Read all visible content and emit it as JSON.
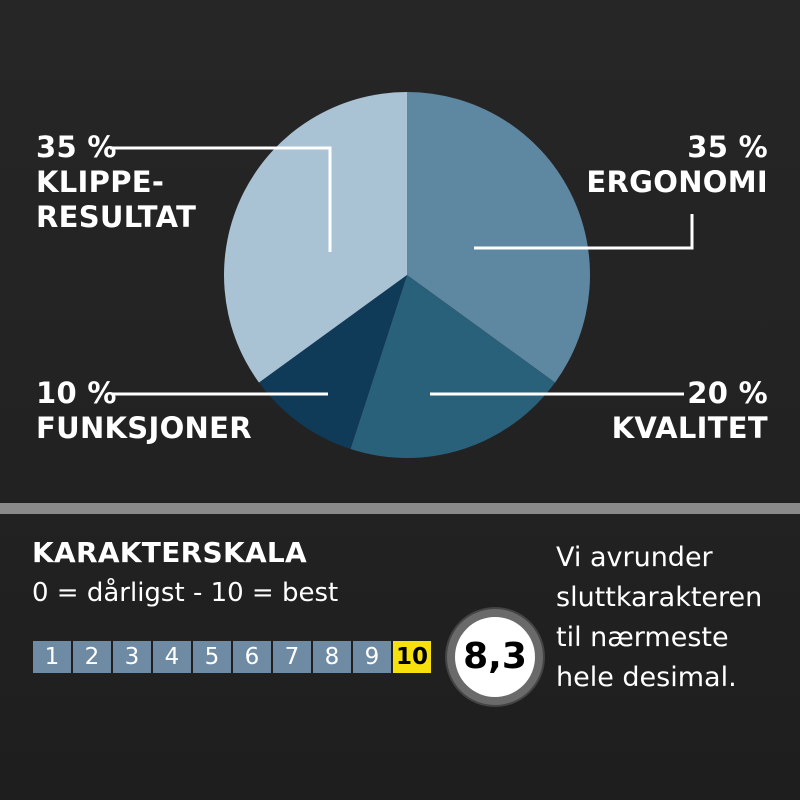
{
  "chart_data": {
    "type": "pie",
    "slices": [
      {
        "label": "ERGONOMI",
        "value": 35,
        "value_label": "35 %",
        "color": "#5e88a1"
      },
      {
        "label": "KVALITET",
        "value": 20,
        "value_label": "20 %",
        "color": "#29607a"
      },
      {
        "label": "FUNKSJONER",
        "value": 10,
        "value_label": "10 %",
        "color": "#0f3a58"
      },
      {
        "label": "KLIPPE-RESULTAT",
        "value": 35,
        "value_label": "35 %",
        "color": "#a9c2d4"
      }
    ]
  },
  "labels": {
    "klippe": {
      "pct": "35 %",
      "line1": "KLIPPE-",
      "line2": "RESULTAT"
    },
    "ergonomi": {
      "pct": "35 %",
      "line1": "ERGONOMI"
    },
    "funksjoner": {
      "pct": "10 %",
      "line1": "FUNKSJONER"
    },
    "kvalitet": {
      "pct": "20 %",
      "line1": "KVALITET"
    }
  },
  "scale": {
    "title": "KARAKTERSKALA",
    "subtitle": "0 = dårligst - 10 = best",
    "numbers": [
      "1",
      "2",
      "3",
      "4",
      "5",
      "6",
      "7",
      "8",
      "9",
      "10"
    ],
    "highlighted": "10",
    "highlight_color": "#f7e10d",
    "cell_color": "#6f8ba3"
  },
  "score": "8,3",
  "note": [
    "Vi avrunder",
    "sluttkarakteren",
    "til nærmeste",
    "hele desimal."
  ]
}
